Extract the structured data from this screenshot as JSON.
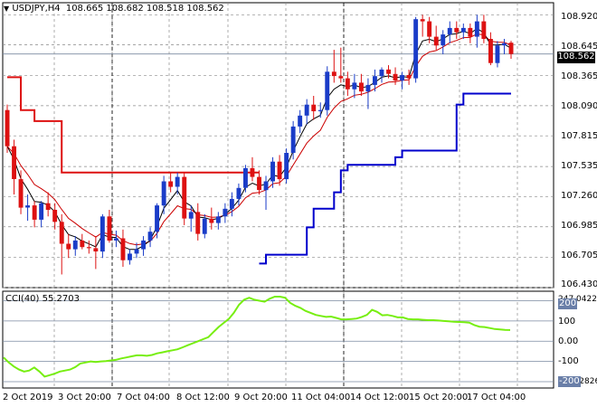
{
  "header": {
    "symbol": "USDJPY,H4",
    "ohlc": "108.665 108.682 108.518 108.562"
  },
  "indicator": {
    "label": "CCI(40) 55.2703",
    "max_value": "247.0422",
    "min_value": "-231.2826"
  },
  "price_axis": [
    "108.920",
    "108.645",
    "108.365",
    "108.090",
    "107.815",
    "107.535",
    "107.260",
    "106.985",
    "106.705",
    "106.430"
  ],
  "current_price": "108.562",
  "cci_axis": [
    "200",
    "100",
    "0.00",
    "-100",
    "-200"
  ],
  "time_axis": [
    "2 Oct 2019",
    "3 Oct 20:00",
    "7 Oct 04:00",
    "8 Oct 12:00",
    "9 Oct 20:00",
    "11 Oct 04:00",
    "14 Oct 12:00",
    "15 Oct 20:00",
    "17 Oct 04:00"
  ],
  "colors": {
    "bull": "#1a3cc8",
    "bear": "#dd1111",
    "ma_fast": "#000000",
    "ma_slow": "#cc0000",
    "upper_band": "#dd1111",
    "lower_band": "#0000cc",
    "cci": "#77ee11",
    "grid": "#8a8a8a",
    "price_line": "#7a8aa0"
  },
  "chart_data": {
    "type": "candlestick",
    "symbol": "USDJPY",
    "timeframe": "H4",
    "ylim": [
      106.43,
      109.03
    ],
    "candles": [
      {
        "o": 108.05,
        "h": 108.1,
        "l": 107.66,
        "c": 107.72
      },
      {
        "o": 107.72,
        "h": 107.78,
        "l": 107.28,
        "c": 107.42
      },
      {
        "o": 107.42,
        "h": 107.5,
        "l": 107.1,
        "c": 107.16
      },
      {
        "o": 107.16,
        "h": 107.28,
        "l": 107.04,
        "c": 107.18
      },
      {
        "o": 107.18,
        "h": 107.22,
        "l": 106.98,
        "c": 107.05
      },
      {
        "o": 107.05,
        "h": 107.22,
        "l": 106.98,
        "c": 107.2
      },
      {
        "o": 107.2,
        "h": 107.3,
        "l": 107.08,
        "c": 107.14
      },
      {
        "o": 107.14,
        "h": 107.2,
        "l": 106.96,
        "c": 107.03
      },
      {
        "o": 107.03,
        "h": 107.1,
        "l": 106.55,
        "c": 106.83
      },
      {
        "o": 106.83,
        "h": 106.92,
        "l": 106.7,
        "c": 106.78
      },
      {
        "o": 106.78,
        "h": 106.9,
        "l": 106.72,
        "c": 106.86
      },
      {
        "o": 106.86,
        "h": 106.92,
        "l": 106.78,
        "c": 106.8
      },
      {
        "o": 106.8,
        "h": 106.86,
        "l": 106.74,
        "c": 106.79
      },
      {
        "o": 106.79,
        "h": 106.9,
        "l": 106.6,
        "c": 106.76
      },
      {
        "o": 106.76,
        "h": 107.1,
        "l": 106.7,
        "c": 107.08
      },
      {
        "o": 107.08,
        "h": 107.14,
        "l": 106.84,
        "c": 106.86
      },
      {
        "o": 106.86,
        "h": 106.95,
        "l": 106.8,
        "c": 106.88
      },
      {
        "o": 106.88,
        "h": 106.96,
        "l": 106.62,
        "c": 106.68
      },
      {
        "o": 106.68,
        "h": 106.78,
        "l": 106.64,
        "c": 106.74
      },
      {
        "o": 106.74,
        "h": 106.84,
        "l": 106.7,
        "c": 106.78
      },
      {
        "o": 106.78,
        "h": 106.9,
        "l": 106.72,
        "c": 106.86
      },
      {
        "o": 106.86,
        "h": 106.98,
        "l": 106.8,
        "c": 106.94
      },
      {
        "o": 106.94,
        "h": 107.2,
        "l": 106.88,
        "c": 107.18
      },
      {
        "o": 107.18,
        "h": 107.45,
        "l": 107.1,
        "c": 107.4
      },
      {
        "o": 107.4,
        "h": 107.48,
        "l": 107.3,
        "c": 107.35
      },
      {
        "o": 107.35,
        "h": 107.48,
        "l": 107.28,
        "c": 107.44
      },
      {
        "o": 107.44,
        "h": 107.48,
        "l": 107.0,
        "c": 107.06
      },
      {
        "o": 107.06,
        "h": 107.18,
        "l": 106.94,
        "c": 107.12
      },
      {
        "o": 107.12,
        "h": 107.2,
        "l": 106.86,
        "c": 106.92
      },
      {
        "o": 106.92,
        "h": 107.1,
        "l": 106.88,
        "c": 107.06
      },
      {
        "o": 107.06,
        "h": 107.16,
        "l": 106.96,
        "c": 107.02
      },
      {
        "o": 107.02,
        "h": 107.12,
        "l": 106.96,
        "c": 107.08
      },
      {
        "o": 107.08,
        "h": 107.2,
        "l": 107.02,
        "c": 107.15
      },
      {
        "o": 107.15,
        "h": 107.3,
        "l": 107.08,
        "c": 107.24
      },
      {
        "o": 107.24,
        "h": 107.38,
        "l": 107.18,
        "c": 107.34
      },
      {
        "o": 107.34,
        "h": 107.55,
        "l": 107.3,
        "c": 107.52
      },
      {
        "o": 107.52,
        "h": 107.62,
        "l": 107.4,
        "c": 107.44
      },
      {
        "o": 107.44,
        "h": 107.5,
        "l": 107.28,
        "c": 107.32
      },
      {
        "o": 107.32,
        "h": 107.45,
        "l": 107.14,
        "c": 107.4
      },
      {
        "o": 107.4,
        "h": 107.62,
        "l": 107.34,
        "c": 107.58
      },
      {
        "o": 107.58,
        "h": 107.64,
        "l": 107.36,
        "c": 107.42
      },
      {
        "o": 107.42,
        "h": 107.7,
        "l": 107.38,
        "c": 107.66
      },
      {
        "o": 107.66,
        "h": 107.95,
        "l": 107.6,
        "c": 107.9
      },
      {
        "o": 107.9,
        "h": 108.05,
        "l": 107.84,
        "c": 108.0
      },
      {
        "o": 108.0,
        "h": 108.15,
        "l": 107.92,
        "c": 108.1
      },
      {
        "o": 108.1,
        "h": 108.18,
        "l": 107.96,
        "c": 108.04
      },
      {
        "o": 108.04,
        "h": 108.12,
        "l": 107.98,
        "c": 108.05
      },
      {
        "o": 108.05,
        "h": 108.45,
        "l": 108.0,
        "c": 108.4
      },
      {
        "o": 108.4,
        "h": 108.6,
        "l": 108.3,
        "c": 108.36
      },
      {
        "o": 108.36,
        "h": 108.62,
        "l": 108.3,
        "c": 108.34
      },
      {
        "o": 108.34,
        "h": 108.4,
        "l": 108.18,
        "c": 108.24
      },
      {
        "o": 108.24,
        "h": 108.38,
        "l": 108.16,
        "c": 108.3
      },
      {
        "o": 108.3,
        "h": 108.38,
        "l": 108.18,
        "c": 108.22
      },
      {
        "o": 108.22,
        "h": 108.34,
        "l": 108.06,
        "c": 108.28
      },
      {
        "o": 108.28,
        "h": 108.42,
        "l": 108.22,
        "c": 108.36
      },
      {
        "o": 108.36,
        "h": 108.44,
        "l": 108.3,
        "c": 108.42
      },
      {
        "o": 108.42,
        "h": 108.46,
        "l": 108.34,
        "c": 108.38
      },
      {
        "o": 108.38,
        "h": 108.44,
        "l": 108.28,
        "c": 108.32
      },
      {
        "o": 108.32,
        "h": 108.4,
        "l": 108.24,
        "c": 108.37
      },
      {
        "o": 108.37,
        "h": 108.42,
        "l": 108.28,
        "c": 108.34
      },
      {
        "o": 108.34,
        "h": 108.9,
        "l": 108.3,
        "c": 108.88
      },
      {
        "o": 108.88,
        "h": 108.92,
        "l": 108.72,
        "c": 108.86
      },
      {
        "o": 108.86,
        "h": 108.9,
        "l": 108.66,
        "c": 108.72
      },
      {
        "o": 108.72,
        "h": 108.82,
        "l": 108.6,
        "c": 108.64
      },
      {
        "o": 108.64,
        "h": 108.78,
        "l": 108.56,
        "c": 108.74
      },
      {
        "o": 108.74,
        "h": 108.86,
        "l": 108.66,
        "c": 108.8
      },
      {
        "o": 108.8,
        "h": 108.86,
        "l": 108.7,
        "c": 108.76
      },
      {
        "o": 108.76,
        "h": 108.84,
        "l": 108.7,
        "c": 108.8
      },
      {
        "o": 108.8,
        "h": 108.84,
        "l": 108.66,
        "c": 108.72
      },
      {
        "o": 108.72,
        "h": 108.92,
        "l": 108.62,
        "c": 108.86
      },
      {
        "o": 108.86,
        "h": 108.92,
        "l": 108.66,
        "c": 108.7
      },
      {
        "o": 108.7,
        "h": 108.76,
        "l": 108.46,
        "c": 108.48
      },
      {
        "o": 108.48,
        "h": 108.68,
        "l": 108.44,
        "c": 108.64
      },
      {
        "o": 108.64,
        "h": 108.7,
        "l": 108.56,
        "c": 108.66
      },
      {
        "o": 108.665,
        "h": 108.682,
        "l": 108.518,
        "c": 108.562
      }
    ],
    "upper_band": [
      [
        0,
        108.35
      ],
      [
        1,
        108.35
      ],
      [
        2,
        108.05
      ],
      [
        3,
        108.05
      ],
      [
        4,
        107.95
      ],
      [
        5,
        107.95
      ],
      [
        6,
        107.95
      ],
      [
        7,
        107.95
      ],
      [
        8,
        107.48
      ],
      [
        9,
        107.48
      ],
      [
        10,
        107.48
      ],
      [
        20,
        107.48
      ],
      [
        30,
        107.48
      ],
      [
        37,
        107.48
      ]
    ],
    "lower_band": [
      [
        37,
        106.65
      ],
      [
        38,
        106.73
      ],
      [
        39,
        106.73
      ],
      [
        40,
        106.73
      ],
      [
        41,
        106.73
      ],
      [
        42,
        106.73
      ],
      [
        43,
        106.73
      ],
      [
        44,
        106.98
      ],
      [
        45,
        107.15
      ],
      [
        46,
        107.15
      ],
      [
        47,
        107.15
      ],
      [
        48,
        107.3
      ],
      [
        49,
        107.5
      ],
      [
        50,
        107.55
      ],
      [
        51,
        107.55
      ],
      [
        52,
        107.55
      ],
      [
        53,
        107.55
      ],
      [
        54,
        107.55
      ],
      [
        55,
        107.55
      ],
      [
        56,
        107.55
      ],
      [
        57,
        107.62
      ],
      [
        58,
        107.68
      ],
      [
        59,
        107.68
      ],
      [
        60,
        107.68
      ],
      [
        61,
        107.68
      ],
      [
        62,
        107.68
      ],
      [
        63,
        107.68
      ],
      [
        64,
        107.68
      ],
      [
        65,
        107.68
      ],
      [
        66,
        108.1
      ],
      [
        67,
        108.2
      ],
      [
        68,
        108.2
      ],
      [
        69,
        108.2
      ],
      [
        70,
        108.2
      ],
      [
        71,
        108.2
      ],
      [
        72,
        108.2
      ],
      [
        73,
        108.2
      ],
      [
        74,
        108.2
      ]
    ],
    "cci": [
      -80,
      -105,
      -125,
      -140,
      -150,
      -145,
      -130,
      -150,
      -175,
      -168,
      -160,
      -150,
      -145,
      -140,
      -128,
      -110,
      -105,
      -100,
      -103,
      -100,
      -98,
      -95,
      -92,
      -85,
      -80,
      -75,
      -70,
      -70,
      -72,
      -68,
      -60,
      -55,
      -50,
      -45,
      -40,
      -30,
      -20,
      -10,
      0,
      10,
      20,
      45,
      70,
      90,
      110,
      140,
      180,
      205,
      215,
      205,
      200,
      195,
      210,
      220,
      220,
      215,
      190,
      175,
      165,
      150,
      140,
      130,
      125,
      120,
      122,
      115,
      108,
      108,
      110,
      112,
      120,
      130,
      155,
      145,
      128,
      130,
      125,
      118,
      118,
      110,
      108,
      108,
      106,
      104,
      104,
      102,
      100,
      98,
      96,
      95,
      94,
      92,
      80,
      72,
      70,
      65,
      60,
      58,
      56,
      55.27
    ],
    "cci_levels": [
      200,
      100,
      0,
      -100,
      -200
    ]
  }
}
